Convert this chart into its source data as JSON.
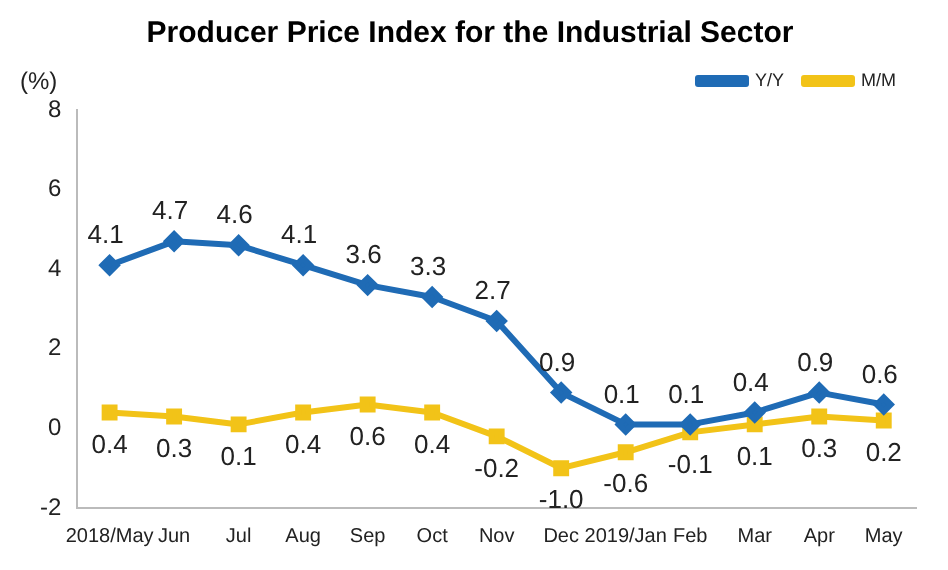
{
  "chart_data": {
    "type": "line",
    "title": "Producer Price Index for the Industrial Sector",
    "ylabel": "(%)",
    "categories": [
      "2018/May",
      "Jun",
      "Jul",
      "Aug",
      "Sep",
      "Oct",
      "Nov",
      "Dec",
      "2019/Jan",
      "Feb",
      "Mar",
      "Apr",
      "May"
    ],
    "series": [
      {
        "name": "Y/Y",
        "color": "#1f6bb5",
        "marker": "diamond",
        "values": [
          4.1,
          4.7,
          4.6,
          4.1,
          3.6,
          3.3,
          2.7,
          0.9,
          0.1,
          0.1,
          0.4,
          0.9,
          0.6
        ],
        "value_labels": [
          "4.1",
          "4.7",
          "4.6",
          "4.1",
          "3.6",
          "3.3",
          "2.7",
          "0.9",
          "0.1",
          "0.1",
          "0.4",
          "0.9",
          "0.6"
        ]
      },
      {
        "name": "M/M",
        "color": "#f2c318",
        "marker": "square",
        "values": [
          0.4,
          0.3,
          0.1,
          0.4,
          0.6,
          0.4,
          -0.2,
          -1.0,
          -0.6,
          -0.1,
          0.1,
          0.3,
          0.2
        ],
        "value_labels": [
          "0.4",
          "0.3",
          "0.1",
          "0.4",
          "0.6",
          "0.4",
          "-0.2",
          "-1.0",
          "-0.6",
          "-0.1",
          "0.1",
          "0.3",
          "0.2"
        ]
      }
    ],
    "ylim": [
      -2,
      8
    ],
    "yticks": [
      -2,
      0,
      2,
      4,
      6,
      8
    ],
    "grid": false,
    "legend": "top right",
    "line_style": "solid"
  }
}
